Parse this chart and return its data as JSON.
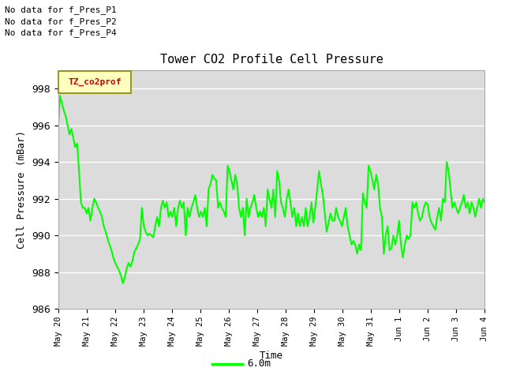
{
  "title": "Tower CO2 Profile Cell Pressure",
  "ylabel": "Cell Pressure (mBar)",
  "xlabel": "Time",
  "legend_label": "6.0m",
  "line_color": "#00ff00",
  "bg_color": "#dcdcdc",
  "outer_bg": "#ffffff",
  "ylim": [
    986,
    999
  ],
  "yticks": [
    986,
    988,
    990,
    992,
    994,
    996,
    998
  ],
  "no_data_labels": [
    "No data for f_Pres_P1",
    "No data for f_Pres_P2",
    "No data for f_Pres_P4"
  ],
  "legend_box_label": "TZ_co2prof",
  "x_tick_labels": [
    "May 20",
    "May 21",
    "May 22",
    "May 23",
    "May 24",
    "May 25",
    "May 26",
    "May 27",
    "May 28",
    "May 29",
    "May 30",
    "May 31",
    "Jun 1",
    "Jun 2",
    "Jun 3",
    "Jun 4"
  ],
  "y_values": [
    995.8,
    997.6,
    997.2,
    996.8,
    996.5,
    996.0,
    995.5,
    995.8,
    995.3,
    994.8,
    995.0,
    993.5,
    991.8,
    991.5,
    991.5,
    991.2,
    991.5,
    990.8,
    991.5,
    992.0,
    991.8,
    991.5,
    991.3,
    991.0,
    990.5,
    990.2,
    989.8,
    989.5,
    989.2,
    988.8,
    988.5,
    988.3,
    988.1,
    987.8,
    987.4,
    987.7,
    988.2,
    988.5,
    988.3,
    988.6,
    989.1,
    989.3,
    989.5,
    989.8,
    991.5,
    990.5,
    990.2,
    990.0,
    990.1,
    990.0,
    989.9,
    990.5,
    991.0,
    990.5,
    991.5,
    991.9,
    991.5,
    991.8,
    991.0,
    991.3,
    991.0,
    991.5,
    990.5,
    991.5,
    991.9,
    991.5,
    991.8,
    990.0,
    991.5,
    991.0,
    991.5,
    991.8,
    992.2,
    991.5,
    991.0,
    991.3,
    991.0,
    991.5,
    990.5,
    992.5,
    992.8,
    993.3,
    993.1,
    993.0,
    991.5,
    991.8,
    991.5,
    991.3,
    991.0,
    993.8,
    993.5,
    993.0,
    992.5,
    993.3,
    992.8,
    991.5,
    991.0,
    991.5,
    990.0,
    992.0,
    991.0,
    991.5,
    991.8,
    992.2,
    991.5,
    991.0,
    991.3,
    991.0,
    991.5,
    990.5,
    992.5,
    992.0,
    991.5,
    992.5,
    991.0,
    993.5,
    993.0,
    991.8,
    991.5,
    991.0,
    992.0,
    992.5,
    991.8,
    991.0,
    991.5,
    990.5,
    991.2,
    990.5,
    991.0,
    990.5,
    991.5,
    990.5,
    991.0,
    991.8,
    990.7,
    991.5,
    992.5,
    993.5,
    992.8,
    992.2,
    991.2,
    990.2,
    990.7,
    991.2,
    990.8,
    990.8,
    991.5,
    991.0,
    990.8,
    990.5,
    991.0,
    991.5,
    990.5,
    990.0,
    989.5,
    989.7,
    989.5,
    989.0,
    989.5,
    989.2,
    992.3,
    991.8,
    991.5,
    993.8,
    993.5,
    993.0,
    992.5,
    993.3,
    992.8,
    991.5,
    991.0,
    989.0,
    990.0,
    990.5,
    989.2,
    989.3,
    990.0,
    989.5,
    990.0,
    990.8,
    989.5,
    988.8,
    989.5,
    990.0,
    989.8,
    990.0,
    991.8,
    991.5,
    991.8,
    991.2,
    990.8,
    991.0,
    991.5,
    991.8,
    991.7,
    991.0,
    990.7,
    990.5,
    990.3,
    991.0,
    991.5,
    990.8,
    992.0,
    991.8,
    994.0,
    993.5,
    992.5,
    991.5,
    991.8,
    991.5,
    991.2,
    991.5,
    991.8,
    992.2,
    991.5,
    991.8,
    991.2,
    991.8,
    991.5,
    991.0,
    991.5,
    992.0,
    991.5,
    992.0,
    991.8
  ]
}
